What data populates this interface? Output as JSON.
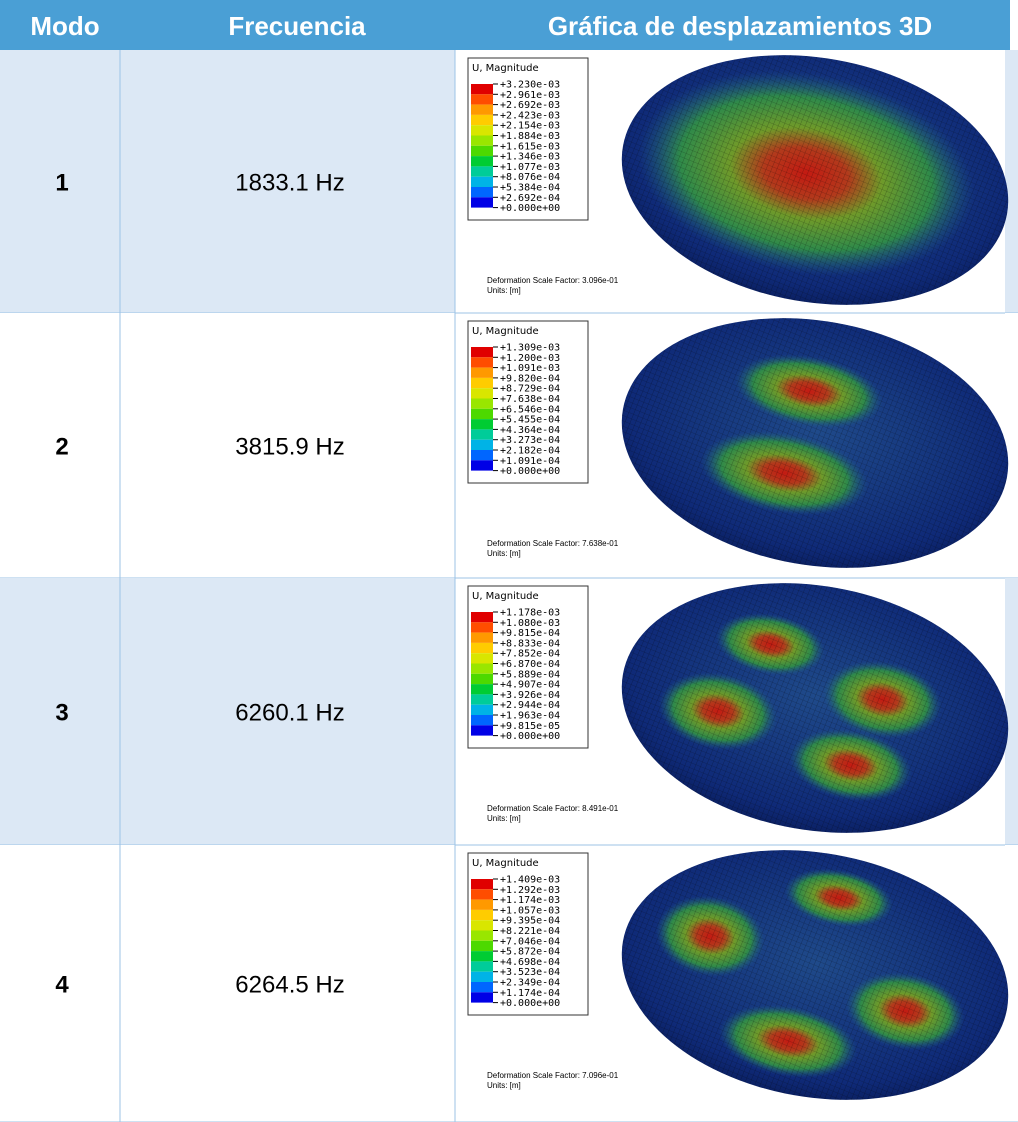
{
  "table": {
    "headers": [
      "Modo",
      "Frecuencia",
      "Gráfica de desplazamientos 3D"
    ],
    "rows": [
      {
        "mode": "1",
        "frequency": "1833.1 Hz",
        "plot": {
          "legend_title": "U, Magnitude",
          "legend_values": [
            "+3.230e-03",
            "+2.961e-03",
            "+2.692e-03",
            "+2.423e-03",
            "+2.154e-03",
            "+1.884e-03",
            "+1.615e-03",
            "+1.346e-03",
            "+1.077e-03",
            "+8.076e-04",
            "+5.384e-04",
            "+2.692e-04",
            "+0.000e+00"
          ],
          "scale_factor": "Deformation Scale Factor: 3.096e-01",
          "units": "Units: [m]"
        }
      },
      {
        "mode": "2",
        "frequency": "3815.9 Hz",
        "plot": {
          "legend_title": "U, Magnitude",
          "legend_values": [
            "+1.309e-03",
            "+1.200e-03",
            "+1.091e-03",
            "+9.820e-04",
            "+8.729e-04",
            "+7.638e-04",
            "+6.546e-04",
            "+5.455e-04",
            "+4.364e-04",
            "+3.273e-04",
            "+2.182e-04",
            "+1.091e-04",
            "+0.000e+00"
          ],
          "scale_factor": "Deformation Scale Factor: 7.638e-01",
          "units": "Units: [m]"
        }
      },
      {
        "mode": "3",
        "frequency": "6260.1 Hz",
        "plot": {
          "legend_title": "U, Magnitude",
          "legend_values": [
            "+1.178e-03",
            "+1.080e-03",
            "+9.815e-04",
            "+8.833e-04",
            "+7.852e-04",
            "+6.870e-04",
            "+5.889e-04",
            "+4.907e-04",
            "+3.926e-04",
            "+2.944e-04",
            "+1.963e-04",
            "+9.815e-05",
            "+0.000e+00"
          ],
          "scale_factor": "Deformation Scale Factor: 8.491e-01",
          "units": "Units: [m]"
        }
      },
      {
        "mode": "4",
        "frequency": "6264.5 Hz",
        "plot": {
          "legend_title": "U, Magnitude",
          "legend_values": [
            "+1.409e-03",
            "+1.292e-03",
            "+1.174e-03",
            "+1.057e-03",
            "+9.395e-04",
            "+8.221e-04",
            "+7.046e-04",
            "+5.872e-04",
            "+4.698e-04",
            "+3.523e-04",
            "+2.349e-04",
            "+1.174e-04",
            "+0.000e+00"
          ],
          "scale_factor": "Deformation Scale Factor: 7.096e-01",
          "units": "Units: [m]"
        }
      }
    ]
  }
}
